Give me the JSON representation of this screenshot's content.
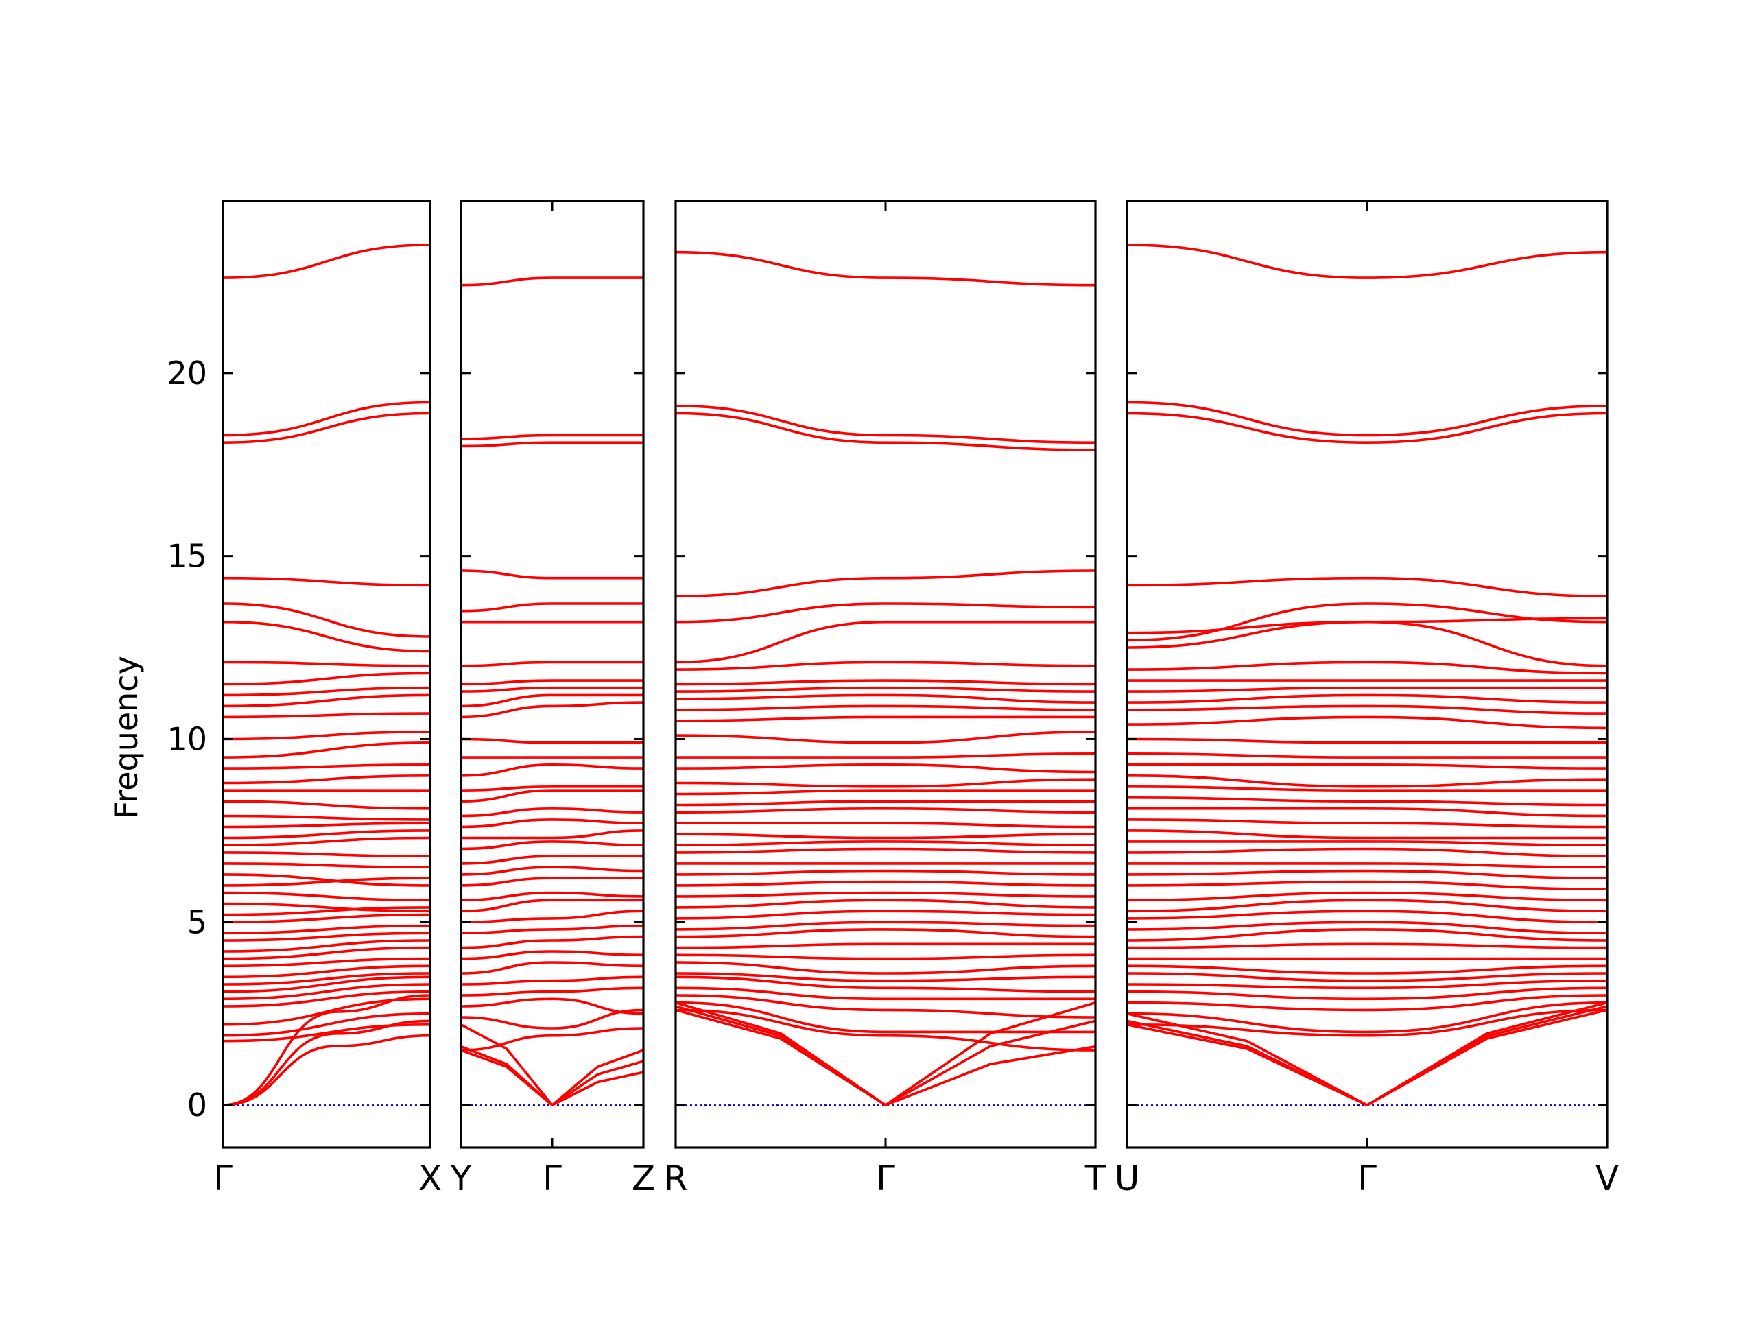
{
  "chart_data": {
    "type": "line",
    "ylabel": "Frequency",
    "ylim": [
      -1.16,
      24.7
    ],
    "y_ticks": [
      0,
      5,
      10,
      15,
      20
    ],
    "y_tick_labels": [
      "0",
      "5",
      "10",
      "15",
      "20"
    ],
    "colors": {
      "bands": "#ff0000",
      "zero_line": "#0000cc",
      "axes": "#000000"
    },
    "zero_line_style": "dotted",
    "grid": false,
    "segments": [
      {
        "k_labels": [
          "Γ",
          "X"
        ],
        "gamma_end": "left",
        "acoustic_end": [
          1.9,
          2.3,
          3.0
        ],
        "bands": [
          [
            1.75,
            2.2
          ],
          [
            1.9,
            2.5
          ],
          [
            2.2,
            2.9
          ],
          [
            2.7,
            3.1
          ],
          [
            2.9,
            3.3
          ],
          [
            3.1,
            3.5
          ],
          [
            3.3,
            3.6
          ],
          [
            3.5,
            3.8
          ],
          [
            3.8,
            4.0
          ],
          [
            4.0,
            4.3
          ],
          [
            4.2,
            4.5
          ],
          [
            4.5,
            4.7
          ],
          [
            4.7,
            4.9
          ],
          [
            5.0,
            5.2
          ],
          [
            5.2,
            5.4
          ],
          [
            5.5,
            5.3
          ],
          [
            5.8,
            5.6
          ],
          [
            6.0,
            6.2
          ],
          [
            6.3,
            6.0
          ],
          [
            6.6,
            6.5
          ],
          [
            6.9,
            6.8
          ],
          [
            7.1,
            7.3
          ],
          [
            7.3,
            7.5
          ],
          [
            7.6,
            7.7
          ],
          [
            7.9,
            7.8
          ],
          [
            8.3,
            8.1
          ],
          [
            8.6,
            8.6
          ],
          [
            8.8,
            9.0
          ],
          [
            9.2,
            9.3
          ],
          [
            9.5,
            9.9
          ],
          [
            10.0,
            10.2
          ],
          [
            10.6,
            10.7
          ],
          [
            10.9,
            11.2
          ],
          [
            11.2,
            11.4
          ],
          [
            11.5,
            11.8
          ],
          [
            12.1,
            12.0
          ],
          [
            13.2,
            12.4
          ],
          [
            13.7,
            12.8
          ],
          [
            14.4,
            14.2
          ],
          [
            18.1,
            18.9
          ],
          [
            18.3,
            19.2
          ],
          [
            22.6,
            23.5
          ]
        ]
      },
      {
        "k_labels": [
          "Y",
          "Γ",
          "Z"
        ],
        "gamma_end": "middle",
        "acoustic_start": [
          1.5,
          1.6,
          2.2
        ],
        "acoustic_end": [
          0.9,
          1.2,
          1.5
        ],
        "bands": [
          [
            1.5,
            1.9,
            2.1
          ],
          [
            2.4,
            2.1,
            2.6
          ],
          [
            2.7,
            2.9,
            2.5
          ],
          [
            3.0,
            3.1,
            3.2
          ],
          [
            3.3,
            3.4,
            3.5
          ],
          [
            3.6,
            3.9,
            3.8
          ],
          [
            4.0,
            4.2,
            4.1
          ],
          [
            4.3,
            4.5,
            4.6
          ],
          [
            4.7,
            4.8,
            4.9
          ],
          [
            5.0,
            5.1,
            5.3
          ],
          [
            5.3,
            5.6,
            5.6
          ],
          [
            5.6,
            5.8,
            5.7
          ],
          [
            6.0,
            6.2,
            6.2
          ],
          [
            6.3,
            6.5,
            6.4
          ],
          [
            6.6,
            6.8,
            6.8
          ],
          [
            7.0,
            7.2,
            7.1
          ],
          [
            7.3,
            7.3,
            7.5
          ],
          [
            7.6,
            7.8,
            7.7
          ],
          [
            7.9,
            8.1,
            8.0
          ],
          [
            8.3,
            8.6,
            8.6
          ],
          [
            8.6,
            8.7,
            8.7
          ],
          [
            9.0,
            9.3,
            9.2
          ],
          [
            9.5,
            9.5,
            9.5
          ],
          [
            10.0,
            9.9,
            9.9
          ],
          [
            10.6,
            10.9,
            11.0
          ],
          [
            10.9,
            11.2,
            11.2
          ],
          [
            11.3,
            11.4,
            11.4
          ],
          [
            11.5,
            11.6,
            11.6
          ],
          [
            12.0,
            12.1,
            12.1
          ],
          [
            13.2,
            13.2,
            13.2
          ],
          [
            13.5,
            13.7,
            13.7
          ],
          [
            14.6,
            14.4,
            14.4
          ],
          [
            18.0,
            18.1,
            18.1
          ],
          [
            18.2,
            18.3,
            18.3
          ],
          [
            22.4,
            22.6,
            22.6
          ]
        ]
      },
      {
        "k_labels": [
          "R",
          "Γ",
          "T"
        ],
        "gamma_end": "middle",
        "acoustic_start": [
          2.6,
          2.7,
          2.8
        ],
        "acoustic_end": [
          1.6,
          2.3,
          2.8
        ],
        "bands": [
          [
            2.6,
            1.9,
            1.5
          ],
          [
            2.8,
            2.0,
            2.0
          ],
          [
            3.0,
            2.6,
            2.4
          ],
          [
            3.2,
            2.9,
            2.9
          ],
          [
            3.5,
            3.2,
            3.1
          ],
          [
            3.6,
            3.4,
            3.5
          ],
          [
            3.9,
            3.6,
            3.8
          ],
          [
            4.1,
            4.0,
            4.1
          ],
          [
            4.3,
            4.4,
            4.4
          ],
          [
            4.6,
            4.8,
            4.6
          ],
          [
            4.8,
            5.0,
            4.9
          ],
          [
            5.1,
            5.3,
            5.2
          ],
          [
            5.4,
            5.6,
            5.4
          ],
          [
            5.7,
            5.8,
            5.7
          ],
          [
            6.0,
            6.1,
            6.0
          ],
          [
            6.3,
            6.4,
            6.3
          ],
          [
            6.6,
            6.6,
            6.6
          ],
          [
            6.9,
            7.0,
            6.9
          ],
          [
            7.1,
            7.2,
            7.1
          ],
          [
            7.4,
            7.3,
            7.4
          ],
          [
            7.7,
            7.7,
            7.6
          ],
          [
            8.0,
            8.1,
            8.0
          ],
          [
            8.2,
            8.3,
            8.3
          ],
          [
            8.5,
            8.6,
            8.6
          ],
          [
            8.8,
            8.7,
            8.9
          ],
          [
            9.2,
            9.3,
            9.1
          ],
          [
            9.5,
            9.5,
            9.6
          ],
          [
            10.1,
            9.9,
            10.2
          ],
          [
            10.5,
            10.6,
            10.6
          ],
          [
            10.8,
            10.9,
            10.8
          ],
          [
            11.1,
            11.2,
            11.0
          ],
          [
            11.3,
            11.4,
            11.3
          ],
          [
            11.5,
            11.6,
            11.5
          ],
          [
            11.9,
            12.1,
            12.0
          ],
          [
            12.1,
            13.2,
            13.2
          ],
          [
            13.2,
            13.7,
            13.6
          ],
          [
            13.9,
            14.4,
            14.6
          ],
          [
            18.9,
            18.1,
            17.9
          ],
          [
            19.1,
            18.3,
            18.1
          ],
          [
            23.3,
            22.6,
            22.4
          ]
        ]
      },
      {
        "k_labels": [
          "U",
          "Γ",
          "V"
        ],
        "gamma_end": "middle",
        "acoustic_start": [
          2.2,
          2.3,
          2.5
        ],
        "acoustic_end": [
          2.6,
          2.7,
          2.8
        ],
        "bands": [
          [
            2.2,
            1.9,
            2.6
          ],
          [
            2.5,
            2.0,
            2.8
          ],
          [
            2.8,
            2.6,
            3.0
          ],
          [
            3.1,
            2.9,
            3.2
          ],
          [
            3.3,
            3.2,
            3.4
          ],
          [
            3.6,
            3.4,
            3.6
          ],
          [
            3.8,
            3.6,
            3.8
          ],
          [
            4.0,
            4.0,
            4.0
          ],
          [
            4.3,
            4.4,
            4.3
          ],
          [
            4.5,
            4.8,
            4.5
          ],
          [
            4.8,
            5.0,
            4.7
          ],
          [
            5.1,
            5.3,
            5.0
          ],
          [
            5.3,
            5.6,
            5.3
          ],
          [
            5.6,
            5.8,
            5.6
          ],
          [
            6.0,
            6.1,
            5.9
          ],
          [
            6.3,
            6.4,
            6.2
          ],
          [
            6.6,
            6.6,
            6.5
          ],
          [
            6.9,
            7.0,
            6.8
          ],
          [
            7.2,
            7.2,
            7.1
          ],
          [
            7.5,
            7.3,
            7.3
          ],
          [
            7.8,
            7.7,
            7.6
          ],
          [
            8.1,
            8.1,
            7.9
          ],
          [
            8.4,
            8.3,
            8.2
          ],
          [
            8.7,
            8.6,
            8.6
          ],
          [
            9.0,
            8.7,
            8.9
          ],
          [
            9.3,
            9.3,
            9.2
          ],
          [
            9.6,
            9.5,
            9.5
          ],
          [
            10.0,
            9.9,
            9.9
          ],
          [
            10.4,
            10.6,
            10.3
          ],
          [
            10.8,
            10.9,
            10.7
          ],
          [
            11.0,
            11.2,
            11.0
          ],
          [
            11.3,
            11.4,
            11.4
          ],
          [
            11.6,
            11.6,
            11.6
          ],
          [
            11.9,
            12.1,
            11.8
          ],
          [
            12.5,
            13.2,
            12.0
          ],
          [
            12.7,
            13.7,
            13.2
          ],
          [
            12.9,
            13.2,
            13.3
          ],
          [
            14.2,
            14.4,
            13.9
          ],
          [
            18.9,
            18.1,
            18.9
          ],
          [
            19.2,
            18.3,
            19.1
          ],
          [
            23.5,
            22.6,
            23.3
          ]
        ]
      }
    ]
  }
}
